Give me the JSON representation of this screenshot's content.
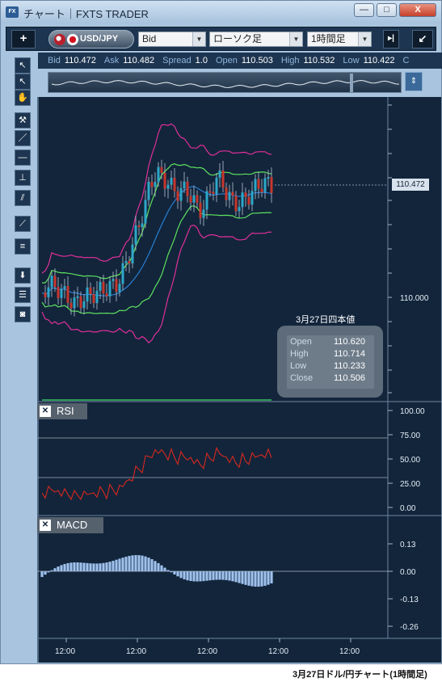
{
  "window": {
    "title": "チャート｜FXTS TRADER",
    "app_icon": "FX"
  },
  "window_buttons": {
    "minimize": "—",
    "maximize": "□",
    "close": "X"
  },
  "toolbar": {
    "add_label": "+",
    "pair": "USD/JPY",
    "price_type": "Bid",
    "chart_type": "ローソク足",
    "timeframe": "1時間足"
  },
  "quote": [
    {
      "label": "Bid",
      "value": "110.472"
    },
    {
      "label": "Ask",
      "value": "110.482"
    },
    {
      "label": "Spread",
      "value": "1.0"
    },
    {
      "label": "Open",
      "value": "110.503"
    },
    {
      "label": "High",
      "value": "110.532"
    },
    {
      "label": "Low",
      "value": "110.422"
    },
    {
      "label": "C",
      "value": ""
    }
  ],
  "price_axis": {
    "current": "110.472",
    "mid": "110.000"
  },
  "ohlc_info": {
    "date": "3月27日四本値",
    "rows": [
      {
        "label": "Open",
        "value": "110.620"
      },
      {
        "label": "High",
        "value": "110.714"
      },
      {
        "label": "Low",
        "value": "110.233"
      },
      {
        "label": "Close",
        "value": "110.506"
      }
    ]
  },
  "rsi": {
    "label": "RSI",
    "ticks": [
      "100.00",
      "75.00",
      "50.00",
      "25.00",
      "0.00"
    ]
  },
  "macd": {
    "label": "MACD",
    "ticks": [
      "0.13",
      "0.00",
      "-0.13",
      "-0.26"
    ]
  },
  "time_axis": [
    "12:00",
    "12:00",
    "12:00",
    "12:00",
    "12:00"
  ],
  "caption": "3月27日ドル/円チャート(1時間足)",
  "colors": {
    "background": "#12253b",
    "bollinger_outer": "#e0309a",
    "bollinger_inner": "#5ee05e",
    "ma": "#2a7fd4",
    "rsi_line": "#d8281e",
    "macd_hist": "#9fc2ee",
    "candle_up": "#2ea7c8",
    "candle_down": "#c8372e"
  }
}
